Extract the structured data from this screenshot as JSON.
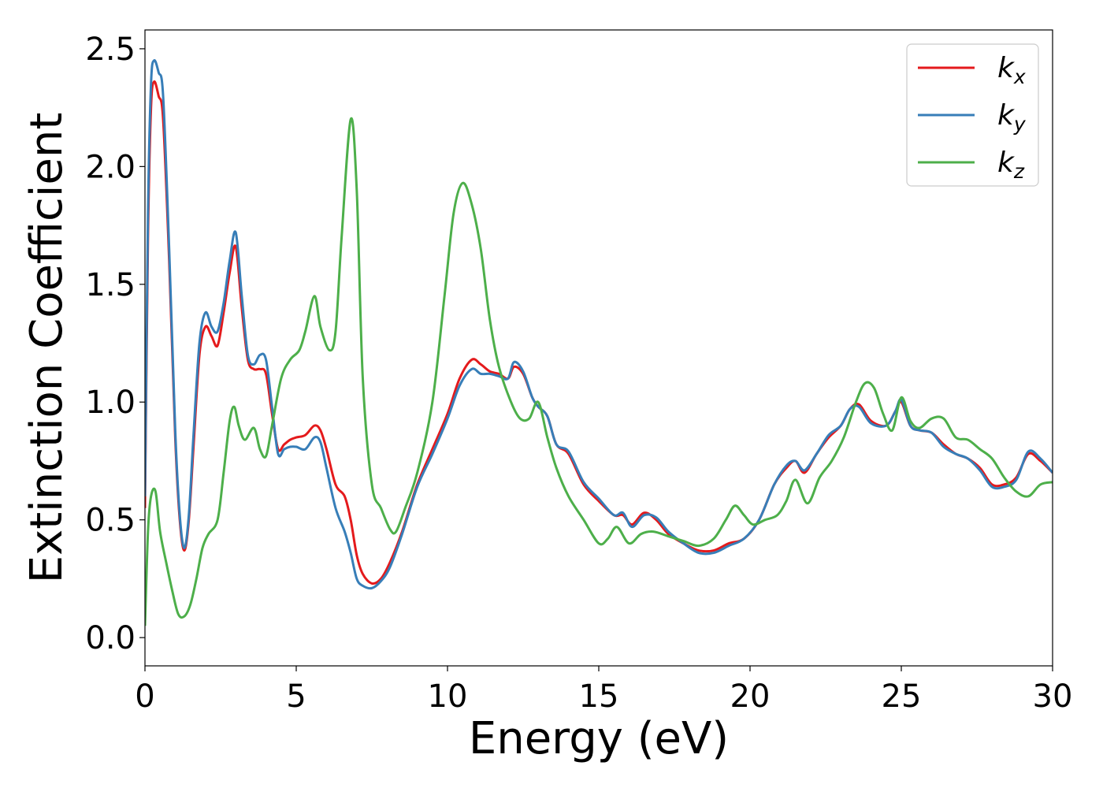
{
  "chart_data": {
    "type": "line",
    "title": "",
    "xlabel": "Energy (eV)",
    "ylabel": "Extinction Coefficient",
    "xlim": [
      0,
      30
    ],
    "ylim": [
      -0.12,
      2.58
    ],
    "xticks": [
      0,
      5,
      10,
      15,
      20,
      25,
      30
    ],
    "xtick_labels": [
      "0",
      "5",
      "10",
      "15",
      "20",
      "25",
      "30"
    ],
    "yticks": [
      0.0,
      0.5,
      1.0,
      1.5,
      2.0,
      2.5
    ],
    "ytick_labels": [
      "0.0",
      "0.5",
      "1.0",
      "1.5",
      "2.0",
      "2.5"
    ],
    "grid": false,
    "legend_position": "top-right",
    "series": [
      {
        "name": "k_x",
        "legend_base": "k",
        "legend_sub": "x",
        "color": "#e41a1c",
        "x": [
          0,
          0.1,
          0.2,
          0.3,
          0.45,
          0.6,
          0.8,
          1.0,
          1.15,
          1.3,
          1.45,
          1.6,
          1.8,
          2.0,
          2.2,
          2.4,
          2.6,
          2.8,
          3.0,
          3.2,
          3.4,
          3.6,
          3.8,
          4.0,
          4.2,
          4.4,
          4.6,
          4.8,
          5.0,
          5.3,
          5.6,
          5.8,
          6.0,
          6.3,
          6.6,
          6.8,
          7.0,
          7.2,
          7.5,
          7.8,
          8.1,
          8.5,
          9.0,
          9.5,
          10.0,
          10.4,
          10.8,
          11.1,
          11.4,
          11.7,
          12.0,
          12.2,
          12.5,
          12.8,
          13.0,
          13.3,
          13.6,
          14.0,
          14.5,
          15.0,
          15.5,
          15.8,
          16.1,
          16.5,
          16.9,
          17.3,
          17.8,
          18.3,
          18.8,
          19.3,
          19.8,
          20.3,
          20.8,
          21.2,
          21.5,
          21.8,
          22.2,
          22.6,
          23.0,
          23.3,
          23.6,
          24.0,
          24.5,
          24.8,
          25.0,
          25.3,
          25.6,
          26.0,
          26.4,
          26.8,
          27.2,
          27.6,
          28.0,
          28.4,
          28.8,
          29.2,
          29.6,
          30.0
        ],
        "y": [
          0.55,
          1.7,
          2.25,
          2.36,
          2.3,
          2.2,
          1.6,
          0.85,
          0.5,
          0.37,
          0.5,
          0.8,
          1.2,
          1.32,
          1.28,
          1.24,
          1.38,
          1.55,
          1.66,
          1.4,
          1.18,
          1.14,
          1.14,
          1.12,
          0.95,
          0.8,
          0.82,
          0.84,
          0.85,
          0.86,
          0.9,
          0.88,
          0.8,
          0.65,
          0.6,
          0.5,
          0.35,
          0.27,
          0.23,
          0.25,
          0.32,
          0.45,
          0.65,
          0.8,
          0.95,
          1.1,
          1.18,
          1.16,
          1.13,
          1.12,
          1.1,
          1.15,
          1.12,
          1.02,
          0.98,
          0.94,
          0.82,
          0.78,
          0.65,
          0.58,
          0.52,
          0.52,
          0.48,
          0.53,
          0.5,
          0.44,
          0.4,
          0.37,
          0.37,
          0.4,
          0.42,
          0.5,
          0.65,
          0.72,
          0.75,
          0.7,
          0.78,
          0.85,
          0.9,
          0.97,
          0.99,
          0.92,
          0.9,
          0.96,
          1.0,
          0.9,
          0.88,
          0.87,
          0.82,
          0.78,
          0.76,
          0.72,
          0.65,
          0.65,
          0.68,
          0.78,
          0.75,
          0.7
        ]
      },
      {
        "name": "k_y",
        "legend_base": "k",
        "legend_sub": "y",
        "color": "#377eb8",
        "x": [
          0,
          0.1,
          0.2,
          0.3,
          0.45,
          0.6,
          0.8,
          1.0,
          1.15,
          1.3,
          1.45,
          1.6,
          1.8,
          2.0,
          2.2,
          2.4,
          2.6,
          2.8,
          3.0,
          3.2,
          3.4,
          3.6,
          3.8,
          4.0,
          4.2,
          4.4,
          4.6,
          4.8,
          5.0,
          5.3,
          5.6,
          5.8,
          6.0,
          6.3,
          6.6,
          6.8,
          7.0,
          7.2,
          7.5,
          7.8,
          8.1,
          8.5,
          9.0,
          9.5,
          10.0,
          10.4,
          10.8,
          11.1,
          11.4,
          11.7,
          12.0,
          12.2,
          12.5,
          12.8,
          13.0,
          13.3,
          13.6,
          14.0,
          14.5,
          15.0,
          15.5,
          15.8,
          16.1,
          16.5,
          16.9,
          17.3,
          17.8,
          18.3,
          18.8,
          19.3,
          19.8,
          20.3,
          20.8,
          21.2,
          21.5,
          21.8,
          22.2,
          22.6,
          23.0,
          23.3,
          23.6,
          24.0,
          24.5,
          24.8,
          25.0,
          25.3,
          25.6,
          26.0,
          26.4,
          26.8,
          27.2,
          27.6,
          28.0,
          28.4,
          28.8,
          29.2,
          29.6,
          30.0
        ],
        "y": [
          0.6,
          1.8,
          2.35,
          2.45,
          2.4,
          2.3,
          1.65,
          0.88,
          0.52,
          0.38,
          0.52,
          0.85,
          1.25,
          1.38,
          1.32,
          1.3,
          1.42,
          1.6,
          1.72,
          1.45,
          1.2,
          1.16,
          1.2,
          1.18,
          0.98,
          0.78,
          0.8,
          0.81,
          0.81,
          0.8,
          0.85,
          0.83,
          0.72,
          0.55,
          0.45,
          0.36,
          0.25,
          0.22,
          0.21,
          0.24,
          0.3,
          0.44,
          0.64,
          0.78,
          0.93,
          1.07,
          1.14,
          1.12,
          1.12,
          1.11,
          1.1,
          1.17,
          1.13,
          1.02,
          0.98,
          0.94,
          0.82,
          0.79,
          0.66,
          0.59,
          0.52,
          0.53,
          0.47,
          0.52,
          0.51,
          0.45,
          0.4,
          0.36,
          0.36,
          0.39,
          0.42,
          0.5,
          0.65,
          0.73,
          0.75,
          0.71,
          0.78,
          0.86,
          0.9,
          0.97,
          0.98,
          0.91,
          0.9,
          0.96,
          1.01,
          0.9,
          0.88,
          0.87,
          0.81,
          0.78,
          0.76,
          0.71,
          0.64,
          0.64,
          0.67,
          0.79,
          0.76,
          0.7
        ]
      },
      {
        "name": "k_z",
        "legend_base": "k",
        "legend_sub": "z",
        "color": "#4daf4a",
        "x": [
          0,
          0.1,
          0.2,
          0.35,
          0.5,
          0.7,
          0.9,
          1.1,
          1.3,
          1.5,
          1.7,
          1.9,
          2.1,
          2.4,
          2.6,
          2.8,
          2.95,
          3.1,
          3.3,
          3.6,
          3.8,
          4.0,
          4.2,
          4.5,
          4.8,
          5.1,
          5.3,
          5.6,
          5.8,
          6.1,
          6.3,
          6.5,
          6.8,
          7.0,
          7.2,
          7.5,
          7.8,
          8.1,
          8.3,
          8.6,
          9.0,
          9.5,
          9.9,
          10.2,
          10.5,
          10.8,
          11.1,
          11.4,
          11.7,
          12.1,
          12.4,
          12.7,
          13.0,
          13.3,
          13.6,
          14.0,
          14.5,
          15.0,
          15.3,
          15.6,
          16.0,
          16.4,
          16.8,
          17.3,
          17.8,
          18.3,
          18.8,
          19.2,
          19.5,
          19.8,
          20.1,
          20.5,
          20.9,
          21.2,
          21.5,
          21.9,
          22.3,
          22.7,
          23.1,
          23.5,
          23.8,
          24.1,
          24.4,
          24.7,
          25.0,
          25.3,
          25.6,
          26.0,
          26.4,
          26.8,
          27.2,
          27.6,
          28.0,
          28.4,
          28.8,
          29.2,
          29.6,
          30.0
        ],
        "y": [
          0.05,
          0.45,
          0.6,
          0.62,
          0.45,
          0.32,
          0.2,
          0.1,
          0.09,
          0.14,
          0.25,
          0.38,
          0.44,
          0.5,
          0.7,
          0.92,
          0.98,
          0.9,
          0.84,
          0.89,
          0.8,
          0.77,
          0.9,
          1.1,
          1.18,
          1.22,
          1.3,
          1.45,
          1.32,
          1.22,
          1.3,
          1.7,
          2.2,
          1.9,
          1.1,
          0.65,
          0.55,
          0.46,
          0.45,
          0.55,
          0.7,
          1.0,
          1.45,
          1.8,
          1.93,
          1.84,
          1.65,
          1.35,
          1.15,
          1.0,
          0.93,
          0.93,
          1.0,
          0.85,
          0.72,
          0.6,
          0.5,
          0.4,
          0.42,
          0.47,
          0.4,
          0.44,
          0.45,
          0.43,
          0.41,
          0.39,
          0.42,
          0.5,
          0.56,
          0.52,
          0.48,
          0.5,
          0.52,
          0.58,
          0.67,
          0.57,
          0.68,
          0.75,
          0.85,
          1.0,
          1.08,
          1.06,
          0.95,
          0.88,
          1.02,
          0.92,
          0.89,
          0.93,
          0.93,
          0.85,
          0.84,
          0.8,
          0.76,
          0.68,
          0.62,
          0.6,
          0.65,
          0.66
        ]
      }
    ]
  }
}
